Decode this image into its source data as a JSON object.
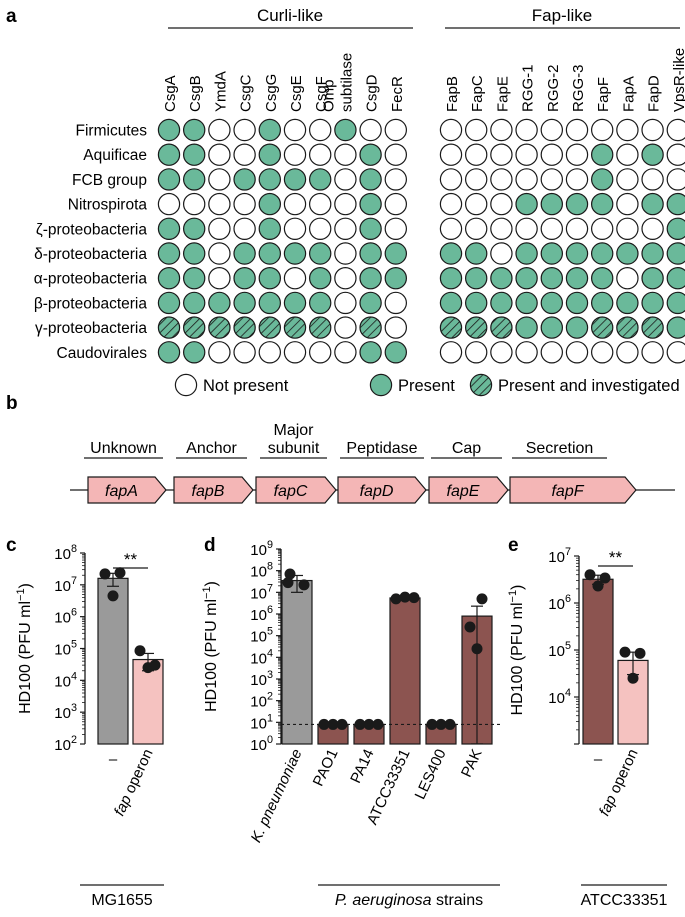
{
  "panel_a": {
    "label": "a",
    "group_curli": "Curli-like",
    "group_fap": "Fap-like",
    "curli_columns": [
      "CsgA",
      "CsgB",
      "YmdA",
      "CsgC",
      "CsgG",
      "CsgE",
      "CsgF",
      "Omp\nsubtilase",
      "CsgD",
      "FecR"
    ],
    "fap_columns": [
      "FapB",
      "FapC",
      "FapE",
      "RGG-1",
      "RGG-2",
      "RGG-3",
      "FapF",
      "FapA",
      "FapD",
      "VpsR-like"
    ],
    "rows": [
      "Firmicutes",
      "Aquificae",
      "FCB group",
      "Nitrospirota",
      "ζ-proteobacteria",
      "δ-proteobacteria",
      "α-proteobacteria",
      "β-proteobacteria",
      "γ-proteobacteria",
      "Caudovirales"
    ],
    "matrix_curli": [
      [
        1,
        1,
        0,
        0,
        1,
        0,
        0,
        1,
        0,
        0
      ],
      [
        1,
        1,
        0,
        0,
        1,
        0,
        0,
        0,
        1,
        0
      ],
      [
        1,
        1,
        0,
        1,
        1,
        1,
        1,
        0,
        1,
        0
      ],
      [
        0,
        0,
        0,
        0,
        1,
        0,
        0,
        0,
        1,
        0
      ],
      [
        1,
        1,
        0,
        0,
        1,
        0,
        0,
        0,
        1,
        0
      ],
      [
        1,
        1,
        0,
        1,
        1,
        1,
        1,
        0,
        1,
        1
      ],
      [
        1,
        1,
        0,
        1,
        1,
        0,
        1,
        0,
        1,
        1
      ],
      [
        1,
        1,
        1,
        1,
        1,
        1,
        1,
        0,
        1,
        0
      ],
      [
        2,
        2,
        2,
        2,
        2,
        2,
        2,
        0,
        2,
        0
      ],
      [
        1,
        1,
        0,
        0,
        0,
        0,
        0,
        0,
        1,
        1
      ]
    ],
    "matrix_fap": [
      [
        0,
        0,
        0,
        0,
        0,
        0,
        0,
        0,
        0,
        0
      ],
      [
        0,
        0,
        0,
        0,
        0,
        0,
        1,
        0,
        1,
        0
      ],
      [
        0,
        0,
        0,
        0,
        0,
        0,
        1,
        0,
        0,
        0
      ],
      [
        0,
        0,
        0,
        1,
        1,
        1,
        1,
        0,
        1,
        1
      ],
      [
        0,
        0,
        0,
        0,
        0,
        0,
        0,
        0,
        0,
        1
      ],
      [
        1,
        1,
        0,
        1,
        1,
        1,
        1,
        1,
        1,
        1
      ],
      [
        1,
        1,
        1,
        1,
        1,
        1,
        1,
        0,
        1,
        1
      ],
      [
        1,
        1,
        1,
        1,
        1,
        1,
        1,
        1,
        1,
        1
      ],
      [
        2,
        2,
        2,
        1,
        1,
        1,
        2,
        2,
        2,
        1
      ],
      [
        0,
        0,
        0,
        0,
        0,
        0,
        0,
        0,
        0,
        0
      ]
    ],
    "legend": [
      "Not present",
      "Present",
      "Present and investigated"
    ]
  },
  "panel_b": {
    "label": "b",
    "roles": [
      "Unknown",
      "Anchor",
      "Major\nsubunit",
      "Peptidase",
      "Cap",
      "Secretion"
    ],
    "genes": [
      "fapA",
      "fapB",
      "fapC",
      "fapD",
      "fapE",
      "fapF"
    ]
  },
  "chart_data": [
    {
      "panel": "c",
      "type": "bar",
      "ylabel": "HD100 (PFU ml⁻¹)",
      "yscale": "log",
      "ylim": [
        100,
        100000000
      ],
      "yticks": [
        "10²",
        "10³",
        "10⁴",
        "10⁵",
        "10⁶",
        "10⁷",
        "10⁸"
      ],
      "categories": [
        "–",
        "fap operon"
      ],
      "values": [
        16000000,
        45000
      ],
      "errors": [
        7000000,
        25000
      ],
      "points": [
        [
          22000000,
          24000000,
          4500000
        ],
        [
          85000,
          30000,
          25000
        ]
      ],
      "significance": "**",
      "group_label": "MG1655"
    },
    {
      "panel": "d",
      "type": "bar",
      "ylabel": "HD100 (PFU ml⁻¹)",
      "yscale": "log",
      "ylim": [
        1,
        1000000000
      ],
      "yticks": [
        "10⁰",
        "10¹",
        "10²",
        "10³",
        "10⁴",
        "10⁵",
        "10⁶",
        "10⁷",
        "10⁸",
        "10⁹"
      ],
      "categories": [
        "K. pneumoniae",
        "PAO1",
        "PA14",
        "ATCC33351",
        "LES400",
        "PAK"
      ],
      "values": [
        35000000,
        8,
        8,
        5500000,
        8,
        800000
      ],
      "errors": [
        25000000,
        0,
        0,
        800000,
        0,
        1500000
      ],
      "points": [
        [
          70000000,
          22000000,
          28000000
        ],
        [
          8,
          8,
          8
        ],
        [
          8,
          8,
          8
        ],
        [
          5000000,
          6000000,
          5700000
        ],
        [
          8,
          8,
          8
        ],
        [
          5000000,
          250000,
          25000
        ]
      ],
      "detection_limit": 8,
      "group_label": "P. aeruginosa strains"
    },
    {
      "panel": "e",
      "type": "bar",
      "ylabel": "HD100 (PFU ml⁻¹)",
      "yscale": "log",
      "ylim": [
        1000,
        10000000
      ],
      "yticks": [
        "10⁴",
        "10⁵",
        "10⁶",
        "10⁷"
      ],
      "categories": [
        "–",
        "fap operon"
      ],
      "values": [
        3200000,
        60000
      ],
      "errors": [
        700000,
        30000
      ],
      "points": [
        [
          4000000,
          3400000,
          2300000
        ],
        [
          90000,
          85000,
          25000
        ]
      ],
      "significance": "**",
      "group_label": "ATCC33351"
    }
  ],
  "colors": {
    "present": "#6ab99a",
    "absent": "#ffffff",
    "gene_fill": "#f4b6b6",
    "grey_bar": "#9a9a9a",
    "brown_bar": "#8c5450",
    "pink_bar": "#f5c2c0"
  }
}
